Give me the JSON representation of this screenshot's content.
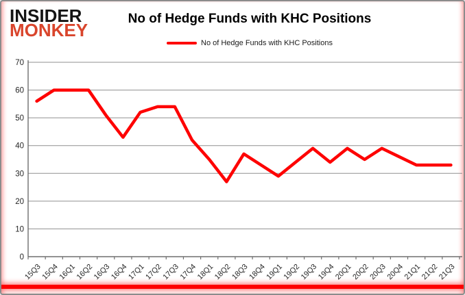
{
  "logo": {
    "line1": "INSIDER",
    "line2": "MONKEY"
  },
  "header": {
    "title": "No of Hedge Funds with KHC Positions"
  },
  "legend": {
    "label": "No of Hedge Funds with KHC Positions"
  },
  "colors": {
    "series": "#fe0000",
    "logo_accent": "#d9452c",
    "grid": "#8f8f8f",
    "axis": "#6e6e6e",
    "tick_text": "#262626"
  },
  "chart_data": {
    "type": "line",
    "title": "No of Hedge Funds with KHC Positions",
    "categories": [
      "15Q3",
      "15Q4",
      "16Q1",
      "16Q2",
      "16Q3",
      "16Q4",
      "17Q1",
      "17Q2",
      "17Q3",
      "17Q4",
      "18Q1",
      "18Q2",
      "18Q3",
      "18Q4",
      "19Q1",
      "19Q2",
      "19Q3",
      "19Q4",
      "20Q1",
      "20Q2",
      "20Q3",
      "20Q4",
      "21Q1",
      "21Q2",
      "21Q3"
    ],
    "series": [
      {
        "name": "No of Hedge Funds with KHC Positions",
        "color": "#fe0000",
        "values": [
          56,
          60,
          60,
          60,
          51,
          43,
          52,
          54,
          54,
          42,
          35,
          27,
          37,
          33,
          29,
          34,
          39,
          34,
          39,
          35,
          39,
          36,
          33,
          33,
          33
        ]
      }
    ],
    "ylim": [
      0,
      70
    ],
    "yticks": [
      0,
      10,
      20,
      30,
      40,
      50,
      60,
      70
    ],
    "grid": "horizontal",
    "legend_position": "top"
  }
}
